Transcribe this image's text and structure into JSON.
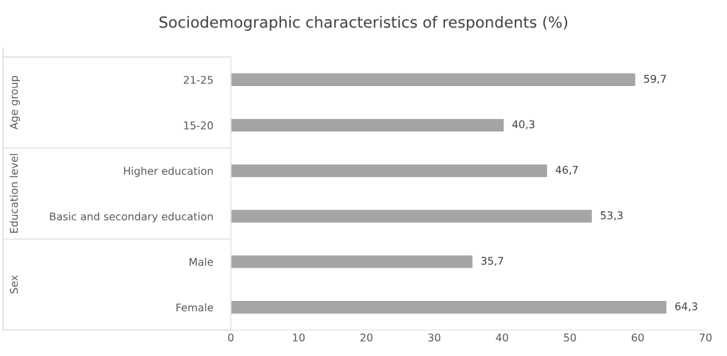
{
  "chart_data": {
    "type": "bar",
    "orientation": "horizontal",
    "title": "Sociodemographic characteristics of respondents (%)",
    "categories": [
      "21-25",
      "15-20",
      "Higher education",
      "Basic and secondary education",
      "Male",
      "Female"
    ],
    "values": [
      59.7,
      40.3,
      46.7,
      53.3,
      35.7,
      64.3
    ],
    "value_labels": [
      "59,7",
      "40,3",
      "46,7",
      "53,3",
      "35,7",
      "64,3"
    ],
    "color": "#a5a5a5",
    "xlim": [
      0,
      70
    ],
    "xticks": [
      0,
      10,
      20,
      30,
      40,
      50,
      60,
      70
    ],
    "grid": false,
    "annotations": [
      "Age group",
      "Education level",
      "Sex"
    ]
  }
}
